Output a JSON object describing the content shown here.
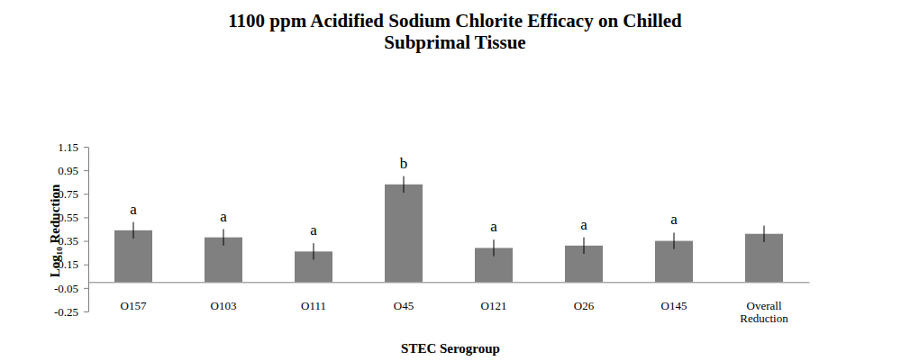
{
  "chart_data": {
    "type": "bar",
    "title": "1100 ppm Acidified Sodium Chlorite Efficacy on Chilled Subprimal Tissue",
    "x_label": "STEC Serogroup",
    "y_label": "Log₁₀ Reduction",
    "categories": [
      "O157",
      "O103",
      "O111",
      "O45",
      "O121",
      "O26",
      "O145",
      "Overall Reduction"
    ],
    "values": [
      0.44,
      0.38,
      0.26,
      0.83,
      0.29,
      0.31,
      0.35,
      0.41
    ],
    "errors": [
      0.07,
      0.07,
      0.07,
      0.07,
      0.07,
      0.07,
      0.07,
      0.07
    ],
    "letters": [
      "a",
      "a",
      "a",
      "b",
      "a",
      "a",
      "a",
      null
    ],
    "color": "#808080",
    "ylim": [
      -0.25,
      1.15
    ],
    "yticks": [
      -0.25,
      -0.05,
      0.15,
      0.35,
      0.55,
      0.75,
      0.95,
      1.15
    ],
    "grid": false
  }
}
